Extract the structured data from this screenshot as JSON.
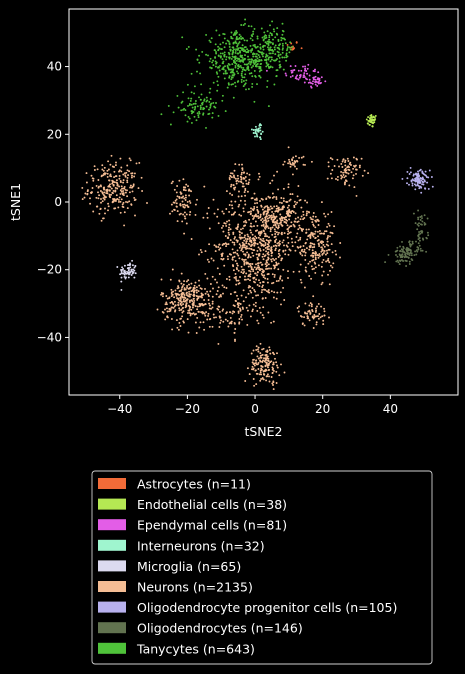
{
  "chart_data": {
    "type": "scatter",
    "title": "",
    "xlabel": "tSNE2",
    "ylabel": "tSNE1",
    "xlim": [
      -55,
      60
    ],
    "ylim": [
      -57,
      57
    ],
    "xticks": [
      -40,
      -20,
      0,
      20,
      40
    ],
    "yticks": [
      -40,
      -20,
      0,
      20,
      40
    ],
    "xtick_labels": [
      "−40",
      "−20",
      "0",
      "20",
      "40"
    ],
    "ytick_labels": [
      "−40",
      "−20",
      "0",
      "20",
      "40"
    ],
    "grid": false,
    "legend_position": "below",
    "series": [
      {
        "name": "Astrocytes (n=11)",
        "color": "#f26b38",
        "n": 11,
        "clusters": [
          {
            "cx": 11,
            "cy": 46,
            "sx": 1.0,
            "sy": 0.8,
            "n": 11
          }
        ]
      },
      {
        "name": "Endothelial cells (n=38)",
        "color": "#b5e853",
        "n": 38,
        "clusters": [
          {
            "cx": 34.5,
            "cy": 24,
            "sx": 0.8,
            "sy": 1.0,
            "n": 38
          }
        ]
      },
      {
        "name": "Ependymal cells (n=81)",
        "color": "#e35de7",
        "n": 81,
        "clusters": [
          {
            "cx": 14,
            "cy": 38,
            "sx": 2.6,
            "sy": 1.6,
            "n": 50
          },
          {
            "cx": 18,
            "cy": 35.5,
            "sx": 1.2,
            "sy": 1.0,
            "n": 31
          }
        ]
      },
      {
        "name": "Interneurons (n=32)",
        "color": "#9ff5cf",
        "n": 32,
        "clusters": [
          {
            "cx": 1.0,
            "cy": 21,
            "sx": 0.9,
            "sy": 1.4,
            "n": 32
          }
        ]
      },
      {
        "name": "Microglia (n=65)",
        "color": "#dcdaf0",
        "n": 65,
        "clusters": [
          {
            "cx": -37.5,
            "cy": -20.5,
            "sx": 1.3,
            "sy": 1.3,
            "n": 65
          }
        ]
      },
      {
        "name": "Neurons (n=2135)",
        "color": "#f5bd94",
        "n": 2135,
        "clusters": [
          {
            "cx": -42,
            "cy": 4,
            "sx": 3.6,
            "sy": 3.8,
            "n": 240
          },
          {
            "cx": -21,
            "cy": 0,
            "sx": 2.0,
            "sy": 3.4,
            "n": 80
          },
          {
            "cx": -5,
            "cy": 7,
            "sx": 1.6,
            "sy": 2.0,
            "n": 50
          },
          {
            "cx": 12,
            "cy": 12,
            "sx": 1.6,
            "sy": 1.0,
            "n": 30
          },
          {
            "cx": 27,
            "cy": 9,
            "sx": 2.2,
            "sy": 2.4,
            "n": 75
          },
          {
            "cx": 0,
            "cy": -13,
            "sx": 6.0,
            "sy": 8.5,
            "n": 700
          },
          {
            "cx": 8,
            "cy": -4,
            "sx": 3.2,
            "sy": 3.5,
            "n": 180
          },
          {
            "cx": 18,
            "cy": -12,
            "sx": 2.8,
            "sy": 5.0,
            "n": 200
          },
          {
            "cx": 17,
            "cy": -33,
            "sx": 2.2,
            "sy": 1.8,
            "n": 60
          },
          {
            "cx": -20,
            "cy": -29,
            "sx": 3.8,
            "sy": 3.3,
            "n": 280
          },
          {
            "cx": 3,
            "cy": -48,
            "sx": 2.2,
            "sy": 2.8,
            "n": 150
          },
          {
            "cx": -8,
            "cy": -33,
            "sx": 4.5,
            "sy": 3.5,
            "n": 90
          }
        ]
      },
      {
        "name": "Oligodendrocyte progenitor cells (n=105)",
        "color": "#b8b1ee",
        "n": 105,
        "clusters": [
          {
            "cx": 48.5,
            "cy": 6.5,
            "sx": 1.6,
            "sy": 1.5,
            "n": 105
          }
        ]
      },
      {
        "name": "Oligodendrocytes (n=146)",
        "color": "#627350",
        "n": 146,
        "clusters": [
          {
            "cx": 44.5,
            "cy": -15,
            "sx": 2.0,
            "sy": 1.6,
            "n": 100
          },
          {
            "cx": 49,
            "cy": -8,
            "sx": 1.0,
            "sy": 2.6,
            "n": 46
          }
        ]
      },
      {
        "name": "Tanycytes (n=643)",
        "color": "#4fc23a",
        "n": 643,
        "clusters": [
          {
            "cx": -5,
            "cy": 42,
            "sx": 5.5,
            "sy": 4.0,
            "n": 400
          },
          {
            "cx": 5,
            "cy": 45,
            "sx": 3.5,
            "sy": 3.0,
            "n": 150
          },
          {
            "cx": -17,
            "cy": 28,
            "sx": 3.2,
            "sy": 2.2,
            "n": 93
          }
        ]
      }
    ]
  }
}
